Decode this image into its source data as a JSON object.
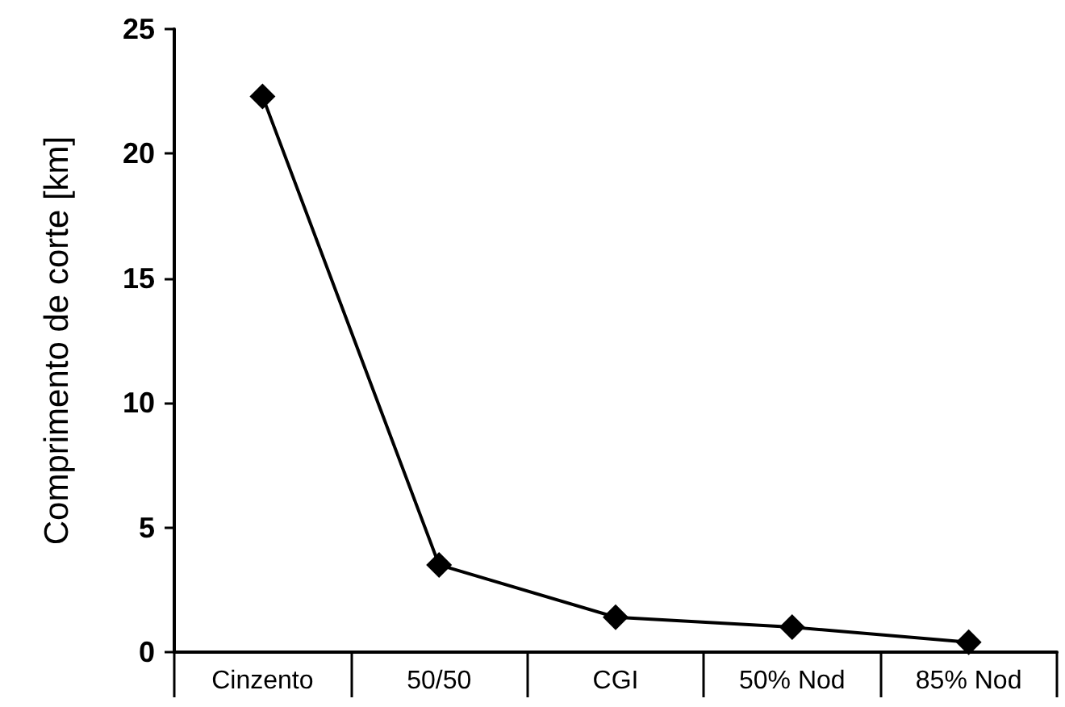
{
  "chart_data": {
    "type": "line",
    "ylabel": "Comprimento de corte [km]",
    "categories": [
      "Cinzento",
      "50/50",
      "CGI",
      "50% Nod",
      "85% Nod"
    ],
    "series": [
      {
        "color": "#000000",
        "values": [
          22.3,
          3.5,
          1.4,
          1.0,
          0.4
        ]
      }
    ],
    "ylim": [
      0,
      25
    ],
    "yticks": [
      0,
      5,
      10,
      15,
      20,
      25
    ],
    "grid": false,
    "marker": "diamond",
    "line_style": "solid"
  }
}
